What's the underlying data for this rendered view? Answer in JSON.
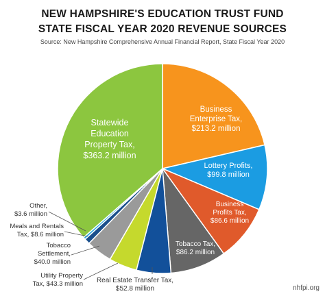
{
  "title_line1": "NEW HAMPSHIRE'S EDUCATION TRUST FUND",
  "title_line2": "STATE FISCAL YEAR 2020 REVENUE SOURCES",
  "source": "Source: New Hampshire Comprehensive Annual Financial Report, State Fiscal Year 2020",
  "credit": "nhfpi.org",
  "chart_data": {
    "type": "pie",
    "title": "NEW HAMPSHIRE'S EDUCATION TRUST FUND STATE FISCAL YEAR 2020 REVENUE SOURCES",
    "unit": "million",
    "slices": [
      {
        "name": "Business Enterprise Tax",
        "value": 213.2,
        "label_lines": [
          "Business",
          "Enterprise Tax,",
          "$213.2 million"
        ],
        "color": "#f7941d",
        "label_placement": "inside"
      },
      {
        "name": "Lottery Profits",
        "value": 99.8,
        "label_lines": [
          "Lottery Profits,",
          "$99.8 million"
        ],
        "color": "#1b9ce2",
        "label_placement": "inside"
      },
      {
        "name": "Business Profits Tax",
        "value": 86.6,
        "label_lines": [
          "Business",
          "Profits Tax,",
          "$86.6 million"
        ],
        "color": "#e05a2b",
        "label_placement": "inside"
      },
      {
        "name": "Tobacco Tax",
        "value": 86.2,
        "label_lines": [
          "Tobacco Tax,",
          "$86.2 million"
        ],
        "color": "#666666",
        "label_placement": "inside"
      },
      {
        "name": "Real Estate Transfer Tax",
        "value": 52.8,
        "label_lines": [
          "Real Estate Transfer Tax,",
          "$52.8 million"
        ],
        "color": "#12509a",
        "label_placement": "outside-below"
      },
      {
        "name": "Utility Property Tax",
        "value": 43.3,
        "label_lines": [
          "Utility Property",
          "Tax, $43.3 million"
        ],
        "color": "#c5d92d",
        "label_placement": "outside-left"
      },
      {
        "name": "Tobacco Settlement",
        "value": 40.0,
        "label_lines": [
          "Tobacco",
          "Settlement,",
          "$40.0 million"
        ],
        "color": "#9a9a9a",
        "label_placement": "outside-left"
      },
      {
        "name": "Meals and Rentals Tax",
        "value": 8.6,
        "label_lines": [
          "Meals and Rentals",
          "Tax, $8.6 million"
        ],
        "color": "#1a4f8c",
        "label_placement": "outside-left"
      },
      {
        "name": "Other",
        "value": 3.6,
        "label_lines": [
          "Other,",
          "$3.6 million"
        ],
        "color": "#29a8e0",
        "label_placement": "outside-left"
      },
      {
        "name": "Statewide Education Property Tax",
        "value": 363.2,
        "label_lines": [
          "Statewide",
          "Education",
          "Property Tax,",
          "$363.2 million"
        ],
        "color": "#8cc63f",
        "label_placement": "inside"
      }
    ]
  }
}
